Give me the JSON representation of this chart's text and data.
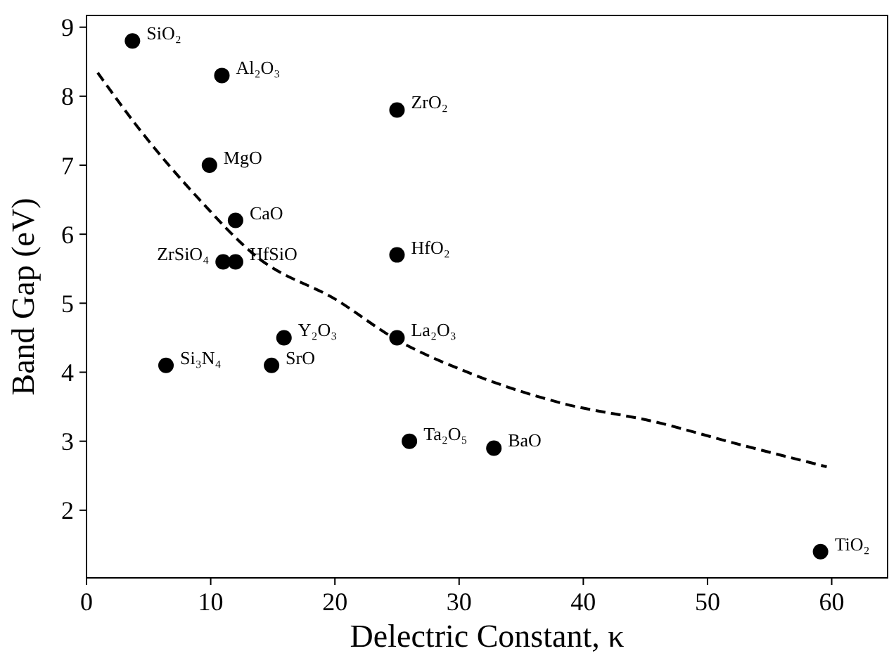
{
  "chart_data": {
    "type": "scatter",
    "xlabel": "Delectric Constant, κ",
    "ylabel": "Band Gap (eV)",
    "xlim": [
      0,
      64.5
    ],
    "ylim": [
      1.02,
      9.17
    ],
    "xticks": [
      0,
      10,
      20,
      30,
      40,
      50,
      60
    ],
    "yticks": [
      2,
      3,
      4,
      5,
      6,
      7,
      8,
      9
    ],
    "grid": false,
    "series": [
      {
        "type": "line",
        "color": "#000000",
        "line_style": "dashed",
        "marker": "none",
        "x": [
          0.9,
          4.35,
          8.9,
          13.8,
          20.2,
          24.7,
          31.1,
          38.3,
          45.8,
          52,
          59.6
        ],
        "values": [
          8.34,
          7.5,
          6.54,
          5.66,
          5.04,
          4.5,
          3.97,
          3.55,
          3.28,
          2.98,
          2.63
        ]
      },
      {
        "color": "#000000",
        "marker": "circle",
        "x": [
          3.7,
          10.9,
          25,
          9.9,
          12,
          11,
          12,
          25,
          15.9,
          25,
          6.4,
          14.9,
          26,
          32.8,
          59.1
        ],
        "values": [
          8.8,
          8.3,
          7.8,
          7.0,
          6.2,
          5.6,
          5.6,
          5.7,
          4.5,
          4.5,
          4.1,
          4.1,
          3.0,
          2.9,
          1.4
        ]
      }
    ],
    "annotations": [
      {
        "text": "SiO₂",
        "x": 3.7,
        "y": 8.8
      },
      {
        "text": "Al₂O₃",
        "x": 10.9,
        "y": 8.3
      },
      {
        "text": "ZrO₂",
        "x": 25,
        "y": 7.8
      },
      {
        "text": "MgO",
        "x": 9.9,
        "y": 7.0
      },
      {
        "text": "CaO",
        "x": 12,
        "y": 6.2
      },
      {
        "text": "ZrSiO₄",
        "x": 11,
        "y": 5.6
      },
      {
        "text": "HfSiO",
        "x": 12,
        "y": 5.6
      },
      {
        "text": "HfO₂",
        "x": 25,
        "y": 5.7
      },
      {
        "text": "Y₂O₃",
        "x": 15.9,
        "y": 4.5
      },
      {
        "text": "La₂O₃",
        "x": 25,
        "y": 4.5
      },
      {
        "text": "Si₃N₄",
        "x": 6.4,
        "y": 4.1
      },
      {
        "text": "SrO",
        "x": 14.9,
        "y": 4.1
      },
      {
        "text": "Ta₂O₅",
        "x": 26,
        "y": 3.0
      },
      {
        "text": "BaO",
        "x": 32.8,
        "y": 2.9
      },
      {
        "text": "TiO₂",
        "x": 59.1,
        "y": 1.4
      }
    ]
  }
}
